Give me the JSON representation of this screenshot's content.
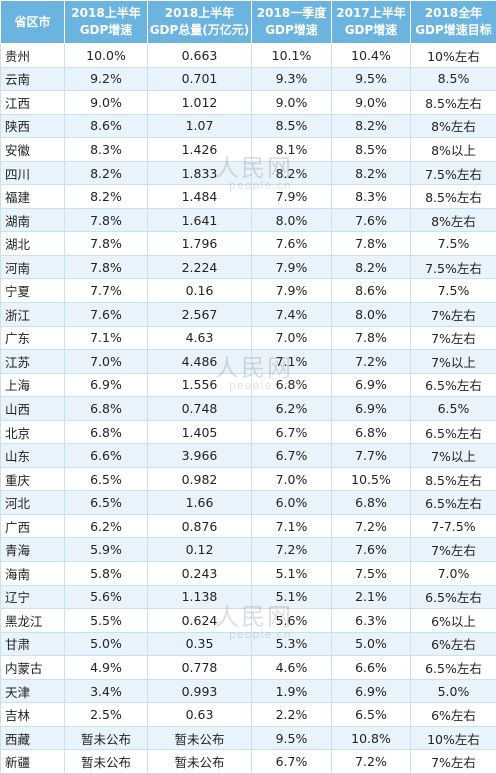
{
  "headers": [
    [
      "省区市"
    ],
    [
      "2018上半年",
      "GDP增速"
    ],
    [
      "2018上半年",
      "GDP总量(万亿元)"
    ],
    [
      "2018一季度",
      "GDP增速"
    ],
    [
      "2017上半年",
      "GDP增速"
    ],
    [
      "2018全年",
      "GDP增速目标"
    ]
  ],
  "rows": [
    [
      "贵州",
      "10.0%",
      "0.663",
      "10.1%",
      "10.4%",
      "10%左右"
    ],
    [
      "云南",
      "9.2%",
      "0.701",
      "9.3%",
      "9.5%",
      "8.5%"
    ],
    [
      "江西",
      "9.0%",
      "1.012",
      "9.0%",
      "9.0%",
      "8.5%左右"
    ],
    [
      "陕西",
      "8.6%",
      "1.07",
      "8.5%",
      "8.2%",
      "8%左右"
    ],
    [
      "安徽",
      "8.3%",
      "1.426",
      "8.1%",
      "8.5%",
      "8%以上"
    ],
    [
      "四川",
      "8.2%",
      "1.833",
      "8.2%",
      "8.2%",
      "7.5%左右"
    ],
    [
      "福建",
      "8.2%",
      "1.484",
      "7.9%",
      "8.3%",
      "8.5%左右"
    ],
    [
      "湖南",
      "7.8%",
      "1.641",
      "8.0%",
      "7.6%",
      "8%左右"
    ],
    [
      "湖北",
      "7.8%",
      "1.796",
      "7.6%",
      "7.8%",
      "7.5%"
    ],
    [
      "河南",
      "7.8%",
      "2.224",
      "7.9%",
      "8.2%",
      "7.5%左右"
    ],
    [
      "宁夏",
      "7.7%",
      "0.16",
      "7.9%",
      "8.6%",
      "7.5%"
    ],
    [
      "浙江",
      "7.6%",
      "2.567",
      "7.4%",
      "8.0%",
      "7%左右"
    ],
    [
      "广东",
      "7.1%",
      "4.63",
      "7.0%",
      "7.8%",
      "7%左右"
    ],
    [
      "江苏",
      "7.0%",
      "4.486",
      "7.1%",
      "7.2%",
      "7%以上"
    ],
    [
      "上海",
      "6.9%",
      "1.556",
      "6.8%",
      "6.9%",
      "6.5%左右"
    ],
    [
      "山西",
      "6.8%",
      "0.748",
      "6.2%",
      "6.9%",
      "6.5%"
    ],
    [
      "北京",
      "6.8%",
      "1.405",
      "6.7%",
      "6.8%",
      "6.5%左右"
    ],
    [
      "山东",
      "6.6%",
      "3.966",
      "6.7%",
      "7.7%",
      "7%以上"
    ],
    [
      "重庆",
      "6.5%",
      "0.982",
      "7.0%",
      "10.5%",
      "8.5%左右"
    ],
    [
      "河北",
      "6.5%",
      "1.66",
      "6.0%",
      "6.8%",
      "6.5%左右"
    ],
    [
      "广西",
      "6.2%",
      "0.876",
      "7.1%",
      "7.2%",
      "7-7.5%"
    ],
    [
      "青海",
      "5.9%",
      "0.12",
      "7.2%",
      "7.6%",
      "7%左右"
    ],
    [
      "海南",
      "5.8%",
      "0.243",
      "5.1%",
      "7.5%",
      "7.0%"
    ],
    [
      "辽宁",
      "5.6%",
      "1.138",
      "5.1%",
      "2.1%",
      "6.5%左右"
    ],
    [
      "黑龙江",
      "5.5%",
      "0.624",
      "5.6%",
      "6.3%",
      "6%以上"
    ],
    [
      "甘肃",
      "5.0%",
      "0.35",
      "5.3%",
      "5.0%",
      "6%左右"
    ],
    [
      "内蒙古",
      "4.9%",
      "0.778",
      "4.6%",
      "6.6%",
      "6.5%左右"
    ],
    [
      "天津",
      "3.4%",
      "0.993",
      "1.9%",
      "6.9%",
      "5.0%"
    ],
    [
      "吉林",
      "2.5%",
      "0.63",
      "2.2%",
      "6.5%",
      "6%左右"
    ],
    [
      "西藏",
      "暂未公布",
      "暂未公布",
      "9.5%",
      "10.8%",
      "10%左右"
    ],
    [
      "新疆",
      "暂未公布",
      "暂未公布",
      "6.7%",
      "7.2%",
      "7%左右"
    ]
  ],
  "watermark": {
    "mark": "人民网",
    "sub": "people.cn"
  },
  "colors": {
    "header_bg": "#6ab4df",
    "row_alt_bg": "#e9f3fb",
    "grid": "#c8e2f3"
  }
}
